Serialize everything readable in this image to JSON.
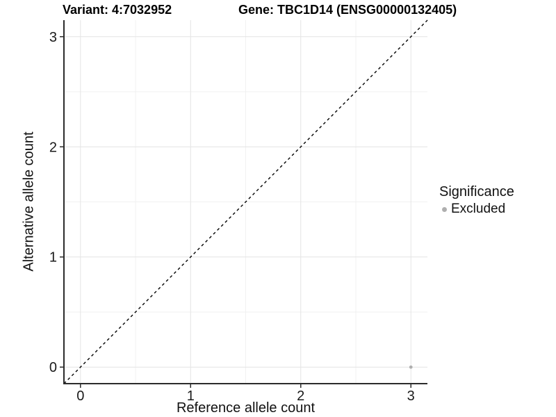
{
  "legend": {
    "title": "Significance",
    "items": [
      {
        "label": "Excluded",
        "color": "#afafaf"
      }
    ]
  },
  "chart_data": {
    "type": "scatter",
    "titles": [
      "Variant: 4:7032952",
      "Gene: TBC1D14 (ENSG00000132405)"
    ],
    "xlabel": "Reference allele count",
    "ylabel": "Alternative allele count",
    "xlim": [
      -0.15,
      3.15
    ],
    "ylim": [
      -0.15,
      3.15
    ],
    "x_ticks": [
      0,
      1,
      2,
      3
    ],
    "y_ticks": [
      0,
      1,
      2,
      3
    ],
    "minor_ticks": [
      0.5,
      1.5,
      2.5
    ],
    "grid": "major+minor",
    "legend_position": "right",
    "series": [
      {
        "name": "Excluded",
        "color": "#afafaf",
        "points": [
          [
            3,
            0
          ]
        ]
      }
    ],
    "reference_line": {
      "type": "identity y=x",
      "style": "dashed",
      "color": "#000000"
    }
  },
  "colors": {
    "background": "#ffffff",
    "grid_major": "#e4e4e4",
    "grid_minor": "#f1f1f1",
    "axis_line": "#2b2b2b",
    "tick_text": "#1a1a1a",
    "point": "#afafaf"
  }
}
